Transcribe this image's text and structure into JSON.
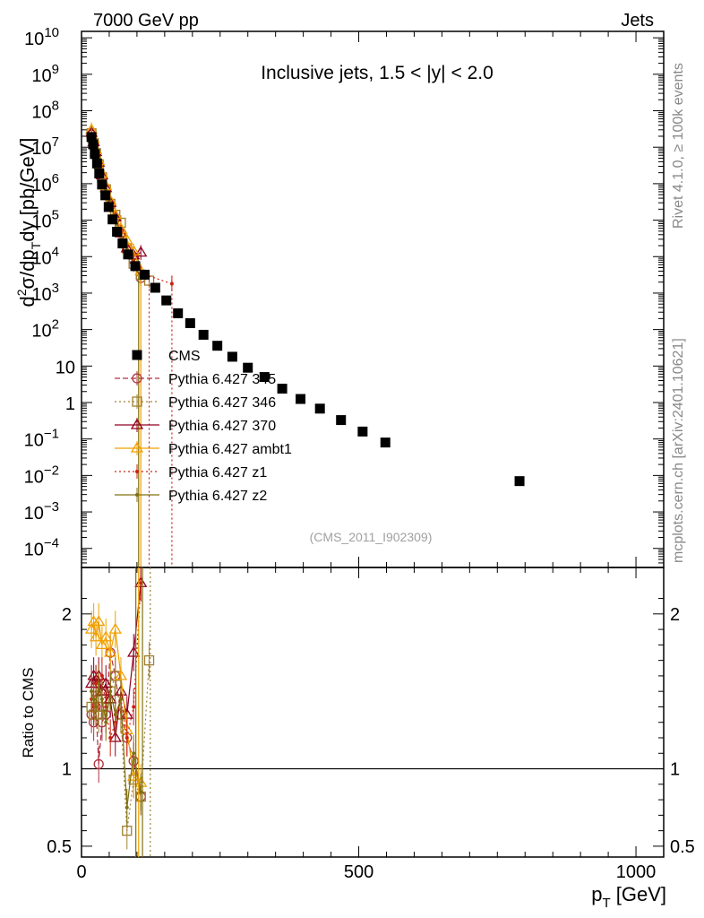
{
  "header": {
    "left": "7000 GeV pp",
    "right": "Jets"
  },
  "side": {
    "rivet": "Rivet 4.1.0, ≥ 100k events",
    "mcplots": "mcplots.cern.ch [arXiv:2401.10621]"
  },
  "chart_data": [
    {
      "type": "scatter",
      "panel": "main",
      "title": "Inclusive jets, 1.5 < |y| < 2.0",
      "watermark": "(CMS_2011_I902309)",
      "ylabel": "d²σ/dp_T dy [pb/GeV]",
      "ylabel_parts": {
        "a": "d",
        "b": "2",
        "c": "σ/dp",
        "d": "T",
        "e": "dy [pb/GeV]"
      },
      "yscale": "log",
      "xlim": [
        0,
        1050
      ],
      "ylim": [
        3e-05,
        15000000000.0
      ],
      "yticks": [
        {
          "label": "10",
          "exp": "10",
          "value": 10000000000.0
        },
        {
          "label": "10",
          "exp": "9",
          "value": 1000000000.0
        },
        {
          "label": "10",
          "exp": "8",
          "value": 100000000.0
        },
        {
          "label": "10",
          "exp": "7",
          "value": 10000000.0
        },
        {
          "label": "10",
          "exp": "6",
          "value": 1000000.0
        },
        {
          "label": "10",
          "exp": "5",
          "value": 100000.0
        },
        {
          "label": "10",
          "exp": "4",
          "value": 10000.0
        },
        {
          "label": "10",
          "exp": "3",
          "value": 1000.0
        },
        {
          "label": "10",
          "exp": "2",
          "value": 100
        },
        {
          "label": "10",
          "exp": "",
          "value": 10
        },
        {
          "label": "1",
          "exp": "",
          "value": 1
        },
        {
          "label": "10",
          "exp": "−1",
          "value": 0.1
        },
        {
          "label": "10",
          "exp": "−2",
          "value": 0.01
        },
        {
          "label": "10",
          "exp": "−3",
          "value": 0.001
        },
        {
          "label": "10",
          "exp": "−4",
          "value": 0.0001
        }
      ],
      "series": [
        {
          "name": "CMS",
          "color": "#000000",
          "marker": "square-filled",
          "x": [
            18,
            21,
            24,
            28,
            32,
            37,
            43,
            49,
            56,
            64,
            74,
            84,
            97,
            114,
            133,
            153,
            174,
            196,
            220,
            245,
            272,
            300,
            330,
            362,
            395,
            430,
            468,
            507,
            548,
            790
          ],
          "y": [
            19000000.0,
            12000000.0,
            6500000.0,
            3600000.0,
            1900000.0,
            950000.0,
            480000.0,
            230000.0,
            105000.0,
            48000.0,
            23000.0,
            11500.0,
            5500.0,
            3200.0,
            1400.0,
            630,
            280,
            150,
            72,
            36,
            18,
            9,
            5,
            2.4,
            1.25,
            0.68,
            0.33,
            0.16,
            0.08,
            0.007
          ]
        },
        {
          "name": "Pythia 6.427 345",
          "color": "#b03040",
          "marker": "circle-open",
          "dash": "6,3",
          "x": [
            18,
            22,
            26,
            31,
            37,
            44,
            52,
            61,
            71,
            82,
            94,
            107
          ],
          "y": [
            22000000.0,
            12000000.0,
            6300000.0,
            3200000.0,
            1400000.0,
            640000.0,
            250000.0,
            110000.0,
            44000.0,
            17000.0,
            8000.0,
            2600.0
          ]
        },
        {
          "name": "Pythia 6.427 346",
          "color": "#a08030",
          "marker": "square-open",
          "dash": "2,3",
          "x": [
            18,
            22,
            26,
            31,
            37,
            44,
            52,
            61,
            71,
            82,
            94,
            107,
            122
          ],
          "y": [
            24000000.0,
            13000000.0,
            6900000.0,
            3400000.0,
            1500000.0,
            700000.0,
            280000.0,
            140000.0,
            85000.0,
            17000.0,
            6400.0,
            3200.0,
            2200.0
          ]
        },
        {
          "name": "Pythia 6.427 370",
          "color": "#900020",
          "marker": "triangle-open",
          "dash": "",
          "x": [
            18,
            22,
            26,
            31,
            37,
            44,
            52,
            61,
            71,
            82,
            94,
            107
          ],
          "y": [
            25000000.0,
            14000000.0,
            7400000.0,
            3800000.0,
            1700000.0,
            760000.0,
            300000.0,
            120000.0,
            44000.0,
            17000.0,
            11000.0,
            13000.0
          ]
        },
        {
          "name": "Pythia 6.427 ambt1",
          "color": "#f0a000",
          "marker": "triangle-open",
          "dash": "",
          "x": [
            18,
            22,
            26,
            31,
            37,
            44,
            52,
            61,
            71,
            82,
            94,
            107
          ],
          "y": [
            30000000.0,
            17000000.0,
            8400000.0,
            4200000.0,
            1900000.0,
            860000.0,
            340000.0,
            140000.0,
            58000.0,
            28000.0,
            14000.0,
            4000.0
          ]
        },
        {
          "name": "Pythia 6.427 z1",
          "color": "#cc2010",
          "marker": "dot",
          "dash": "2,3",
          "x": [
            18,
            22,
            26,
            31,
            37,
            44,
            52,
            61,
            71,
            82,
            94,
            107,
            163
          ],
          "y": [
            23000000.0,
            13000000.0,
            6600000.0,
            3400000.0,
            1500000.0,
            660000.0,
            270000.0,
            110000.0,
            46000.0,
            19000.0,
            8000.0,
            3500.0,
            1800.0
          ]
        },
        {
          "name": "Pythia 6.427 z2",
          "color": "#807010",
          "marker": "dot",
          "dash": "",
          "x": [
            18,
            22,
            26,
            31,
            37,
            44,
            52,
            61,
            71,
            82,
            94,
            107
          ],
          "y": [
            23000000.0,
            13000000.0,
            6500000.0,
            3300000.0,
            1400000.0,
            640000.0,
            260000.0,
            105000.0,
            42000.0,
            16000.0,
            6000.0,
            2500.0
          ]
        }
      ]
    },
    {
      "type": "scatter",
      "panel": "ratio",
      "ylabel": "Ratio to CMS",
      "xlabel": "p_T [GeV]",
      "xlabel_parts": {
        "a": "p",
        "b": "T",
        "c": " [GeV]"
      },
      "xlim": [
        0,
        1050
      ],
      "ylim": [
        0.43,
        2.3
      ],
      "xticks": [
        {
          "label": "0",
          "value": 0
        },
        {
          "label": "500",
          "value": 500
        },
        {
          "label": "1000",
          "value": 1000
        }
      ],
      "yticks": [
        {
          "label": "0.5",
          "value": 0.5
        },
        {
          "label": "1",
          "value": 1
        },
        {
          "label": "2",
          "value": 2
        }
      ],
      "reference": 1,
      "series": [
        {
          "name": "Pythia 6.427 345",
          "color": "#b03040",
          "marker": "circle-open",
          "dash": "6,3",
          "x": [
            18,
            22,
            26,
            31,
            37,
            44,
            52,
            61,
            71,
            82,
            94,
            107
          ],
          "y": [
            1.35,
            1.3,
            1.4,
            1.03,
            1.3,
            1.35,
            1.75,
            1.6,
            1.35,
            1.2,
            1.05,
            0.82
          ]
        },
        {
          "name": "Pythia 6.427 346",
          "color": "#a08030",
          "marker": "square-open",
          "dash": "2,3",
          "x": [
            18,
            22,
            26,
            31,
            37,
            44,
            52,
            61,
            71,
            82,
            94,
            107,
            122
          ],
          "y": [
            1.4,
            1.35,
            1.5,
            1.35,
            1.4,
            1.45,
            1.5,
            1.6,
            1.35,
            0.6,
            0.93,
            0.82,
            1.7
          ]
        },
        {
          "name": "Pythia 6.427 370",
          "color": "#900020",
          "marker": "triangle-open",
          "dash": "",
          "x": [
            18,
            22,
            26,
            31,
            37,
            44,
            52,
            61,
            71,
            82,
            94,
            107
          ],
          "y": [
            1.55,
            1.6,
            1.55,
            1.6,
            1.5,
            1.55,
            1.45,
            1.2,
            1.5,
            1.35,
            1.75,
            2.2
          ]
        },
        {
          "name": "Pythia 6.427 ambt1",
          "color": "#f0a000",
          "marker": "triangle-open",
          "dash": "",
          "x": [
            18,
            22,
            26,
            31,
            37,
            44,
            52,
            61,
            71,
            82,
            94,
            107
          ],
          "y": [
            1.9,
            1.95,
            1.85,
            1.95,
            1.8,
            1.85,
            1.75,
            1.9,
            1.6,
            1.25,
            0.95,
            0.91
          ]
        },
        {
          "name": "Pythia 6.427 z1",
          "color": "#cc2010",
          "marker": "dot",
          "dash": "2,3",
          "x": [
            18,
            22,
            26,
            31,
            37,
            44,
            52,
            61,
            71,
            82,
            94,
            107
          ],
          "y": [
            1.45,
            1.4,
            1.55,
            1.5,
            1.6,
            1.4,
            1.2,
            1.3,
            1.45,
            1.2,
            1.4,
            2.2
          ]
        },
        {
          "name": "Pythia 6.427 z2",
          "color": "#807010",
          "marker": "dot",
          "dash": "",
          "x": [
            18,
            22,
            26,
            31,
            37,
            44,
            52,
            61,
            71,
            82,
            94,
            107
          ],
          "y": [
            1.5,
            1.45,
            1.4,
            1.55,
            1.45,
            1.3,
            1.5,
            1.35,
            1.45,
            0.75,
            1.1,
            0.85
          ]
        }
      ]
    }
  ]
}
